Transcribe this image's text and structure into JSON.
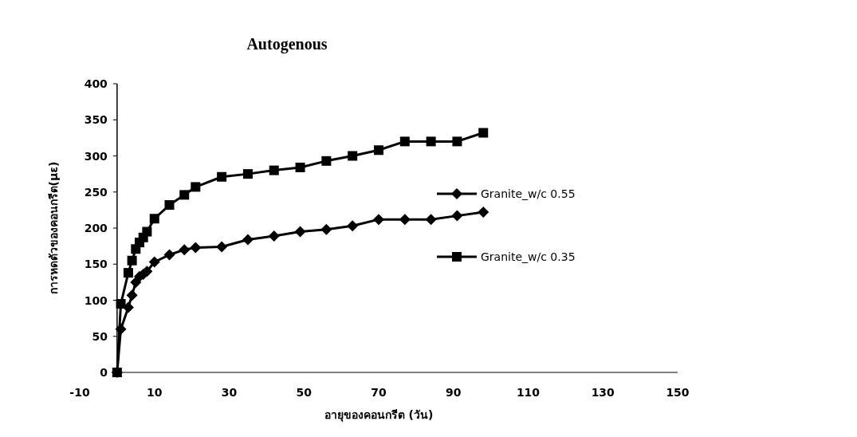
{
  "chart_data": {
    "type": "line",
    "title": "Autogenous",
    "xlabel": "อายุของคอนกรีต (วัน)",
    "ylabel": "การหดตัวของคอนกรีต(με)",
    "xlim": [
      -10,
      150
    ],
    "xticks": [
      -10,
      10,
      30,
      50,
      70,
      90,
      110,
      130,
      150
    ],
    "ylim": [
      0,
      400
    ],
    "yticks": [
      0,
      50,
      100,
      150,
      200,
      250,
      300,
      350,
      400
    ],
    "x": [
      0,
      1,
      3,
      4,
      5,
      6,
      7,
      8,
      10,
      14,
      18,
      21,
      28,
      35,
      42,
      49,
      56,
      63,
      70,
      77,
      84,
      91,
      98
    ],
    "series": [
      {
        "name": "Granite_w/c 0.55",
        "color": "#000000",
        "marker": "diamond",
        "values": [
          0,
          60,
          90,
          107,
          125,
          133,
          136,
          140,
          153,
          163,
          170,
          173,
          174,
          184,
          189,
          195,
          198,
          203,
          212,
          212,
          212,
          217,
          222
        ]
      },
      {
        "name": "Granite_w/c 0.35",
        "color": "#000000",
        "marker": "square",
        "values": [
          0,
          95,
          138,
          155,
          171,
          180,
          187,
          195,
          213,
          232,
          246,
          257,
          271,
          275,
          280,
          284,
          293,
          300,
          308,
          320,
          320,
          320,
          332
        ]
      }
    ],
    "legend": "right",
    "grid": false
  }
}
